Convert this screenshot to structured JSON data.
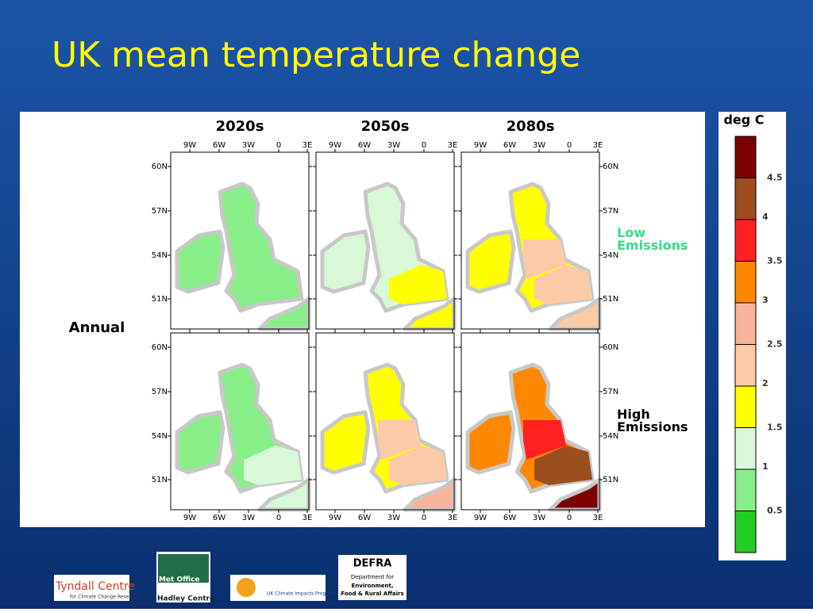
{
  "title": "UK mean temperature change",
  "columns": [
    "2020s",
    "2050s",
    "2080s"
  ],
  "rows": [
    "Low\nEmissions",
    "High\nEmissions"
  ],
  "row_label": "Annual",
  "lon_ticks": [
    "9W",
    "6W",
    "3W",
    "0",
    "3E"
  ],
  "lat_ticks": [
    "60N",
    "57N",
    "54N",
    "51N"
  ],
  "legend": {
    "title": "deg C",
    "clim": [
      0,
      5
    ],
    "colors": [
      "#22cc22",
      "#88ee88",
      "#d8f8d8",
      "#ffff00",
      "#fbcaa6",
      "#f8b49a",
      "#ff8800",
      "#ff2020",
      "#9c4f1e",
      "#7b0000"
    ],
    "ticks": [
      0.5,
      1,
      1.5,
      2,
      2.5,
      3,
      3.5,
      4,
      4.5
    ]
  },
  "logos": {
    "tyndall": [
      "Tyndall Centre",
      "for Climate Change Research"
    ],
    "metoffice": [
      "Met Office",
      "Hadley Centre"
    ],
    "ukcip": [
      "UK Climate Impacts Programme"
    ],
    "defra": [
      "DEFRA",
      "Department for",
      "Environment,",
      "Food & Rural Affairs"
    ]
  }
}
